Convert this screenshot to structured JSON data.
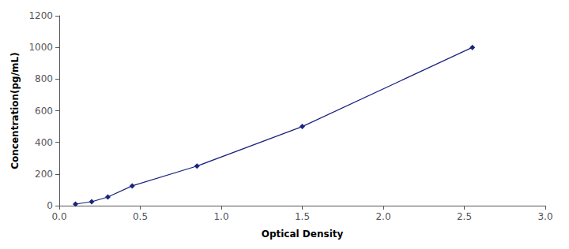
{
  "chart_data": {
    "type": "line",
    "x": [
      0.1,
      0.2,
      0.3,
      0.45,
      0.85,
      1.5,
      2.55
    ],
    "values": [
      10,
      25,
      55,
      125,
      250,
      500,
      1000
    ],
    "color": "#1a237e",
    "marker": "diamond",
    "line_style": "solid",
    "xlabel": "Optical Density",
    "ylabel": "Concentration(pg/mL)",
    "xlim": [
      0,
      3
    ],
    "ylim": [
      0,
      1200
    ],
    "xticks": [
      {
        "value": 0,
        "label": "0.0"
      },
      {
        "value": 0.5,
        "label": "0.5"
      },
      {
        "value": 1,
        "label": "1.0"
      },
      {
        "value": 1.5,
        "label": "1.5"
      },
      {
        "value": 2,
        "label": "2.0"
      },
      {
        "value": 2.5,
        "label": "2.5"
      },
      {
        "value": 3,
        "label": "3.0"
      }
    ],
    "yticks": [
      0,
      200,
      400,
      600,
      800,
      1000,
      1200
    ],
    "grid": false
  }
}
